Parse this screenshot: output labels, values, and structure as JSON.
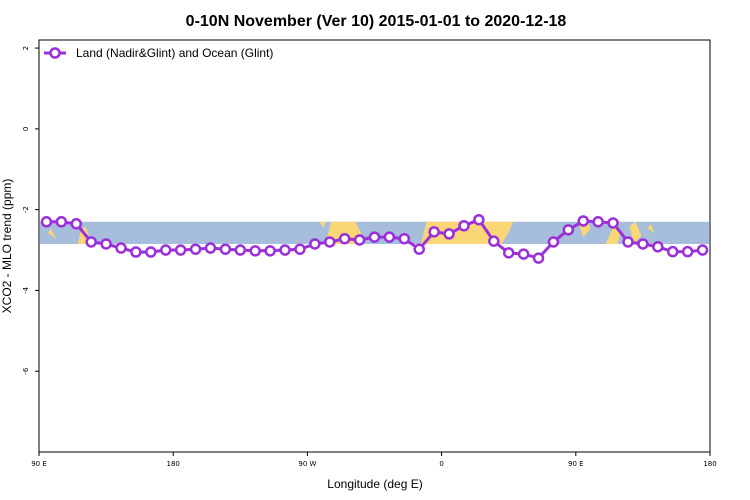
{
  "chart_data": {
    "type": "line",
    "title": "0-10N November (Ver 10)   2015-01-01 to 2020-12-18",
    "xlabel": "Longitude (deg E)",
    "ylabel": "XCO2 - MLO trend (ppm)",
    "xlim": [
      90,
      540
    ],
    "ylim": [
      -8,
      2.2
    ],
    "x_ticks": [
      {
        "value": 90,
        "label": "90 E"
      },
      {
        "value": 180,
        "label": "180"
      },
      {
        "value": 270,
        "label": "90 W"
      },
      {
        "value": 360,
        "label": "0"
      },
      {
        "value": 450,
        "label": "90 E"
      },
      {
        "value": 540,
        "label": "180"
      }
    ],
    "y_ticks": [
      {
        "value": 2,
        "label": "2"
      },
      {
        "value": 0,
        "label": "0"
      },
      {
        "value": -2,
        "label": "-2"
      },
      {
        "value": -4,
        "label": "-4"
      },
      {
        "value": -6,
        "label": "-6"
      }
    ],
    "map_band": {
      "lat_range": [
        0,
        10
      ],
      "y_range": [
        -2.3,
        -2.85
      ],
      "ocean_color": "#a6bddb",
      "land_color": "#fbd677"
    },
    "series": [
      {
        "name": "Land (Nadir&Glint) and Ocean (Glint)",
        "color": "#9b30d9",
        "x": [
          95,
          105,
          115,
          125,
          135,
          145,
          155,
          165,
          175,
          185,
          195,
          205,
          215,
          225,
          235,
          245,
          255,
          265,
          275,
          285,
          295,
          305,
          315,
          325,
          335,
          345,
          355,
          365,
          375,
          385,
          395,
          405,
          415,
          425,
          435,
          445,
          455,
          465,
          475,
          485,
          495,
          505,
          515,
          525,
          535
        ],
        "values": [
          -2.3,
          -2.3,
          -2.35,
          -2.8,
          -2.85,
          -2.95,
          -3.05,
          -3.05,
          -3.0,
          -3.0,
          -2.98,
          -2.95,
          -2.98,
          -3.0,
          -3.02,
          -3.02,
          -3.0,
          -2.98,
          -2.85,
          -2.8,
          -2.72,
          -2.75,
          -2.68,
          -2.68,
          -2.72,
          -2.98,
          -2.55,
          -2.6,
          -2.4,
          -2.25,
          -2.78,
          -3.07,
          -3.1,
          -3.2,
          -2.8,
          -2.5,
          -2.28,
          -2.3,
          -2.33,
          -2.8,
          -2.85,
          -2.92,
          -3.04,
          -3.04,
          -3.0
        ]
      }
    ],
    "legend_position": "top-left"
  }
}
